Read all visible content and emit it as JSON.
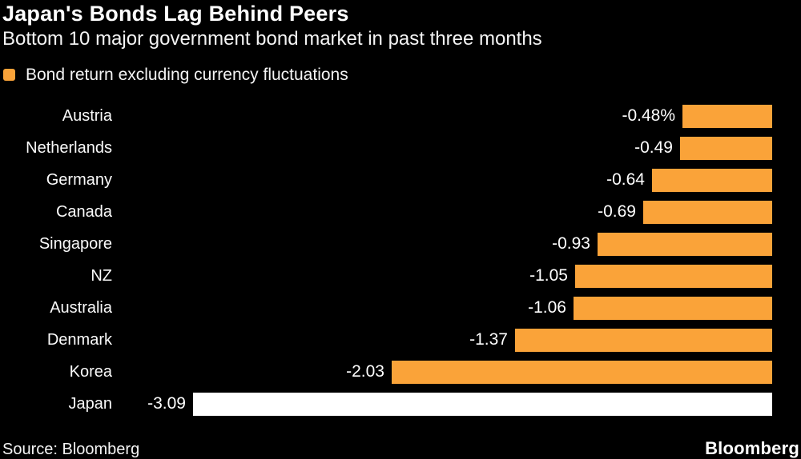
{
  "header": {
    "title": "Japan's Bonds Lag Behind Peers",
    "subtitle": "Bottom 10 major government bond market in past three months"
  },
  "legend": {
    "label": "Bond return excluding currency fluctuations",
    "swatch_color": "#FAA339"
  },
  "chart_data": {
    "type": "bar",
    "orientation": "horizontal",
    "title": "Japan's Bonds Lag Behind Peers",
    "subtitle": "Bottom 10 major government bond market in past three months",
    "legend_entries": [
      "Bond return excluding currency fluctuations"
    ],
    "legend_position": "top-left",
    "grid": false,
    "baseline": "right-edge-zero",
    "xlim": [
      -3.09,
      0
    ],
    "unit": "%",
    "categories": [
      "Austria",
      "Netherlands",
      "Germany",
      "Canada",
      "Singapore",
      "NZ",
      "Australia",
      "Denmark",
      "Korea",
      "Japan"
    ],
    "values": [
      -0.48,
      -0.49,
      -0.64,
      -0.69,
      -0.93,
      -1.05,
      -1.06,
      -1.37,
      -2.03,
      -3.09
    ],
    "value_labels": [
      "-0.48%",
      "-0.49",
      "-0.64",
      "-0.69",
      "-0.93",
      "-1.05",
      "-1.06",
      "-1.37",
      "-2.03",
      "-3.09"
    ],
    "bar_color": "#FAA339",
    "highlight_category": "Japan",
    "highlight_color": "#FFFFFF"
  },
  "footer": {
    "source": "Source: Bloomberg",
    "logo": "Bloomberg"
  },
  "colors": {
    "background": "#000000",
    "text": "#FFFFFF",
    "accent": "#FAA339",
    "highlight": "#FFFFFF"
  }
}
